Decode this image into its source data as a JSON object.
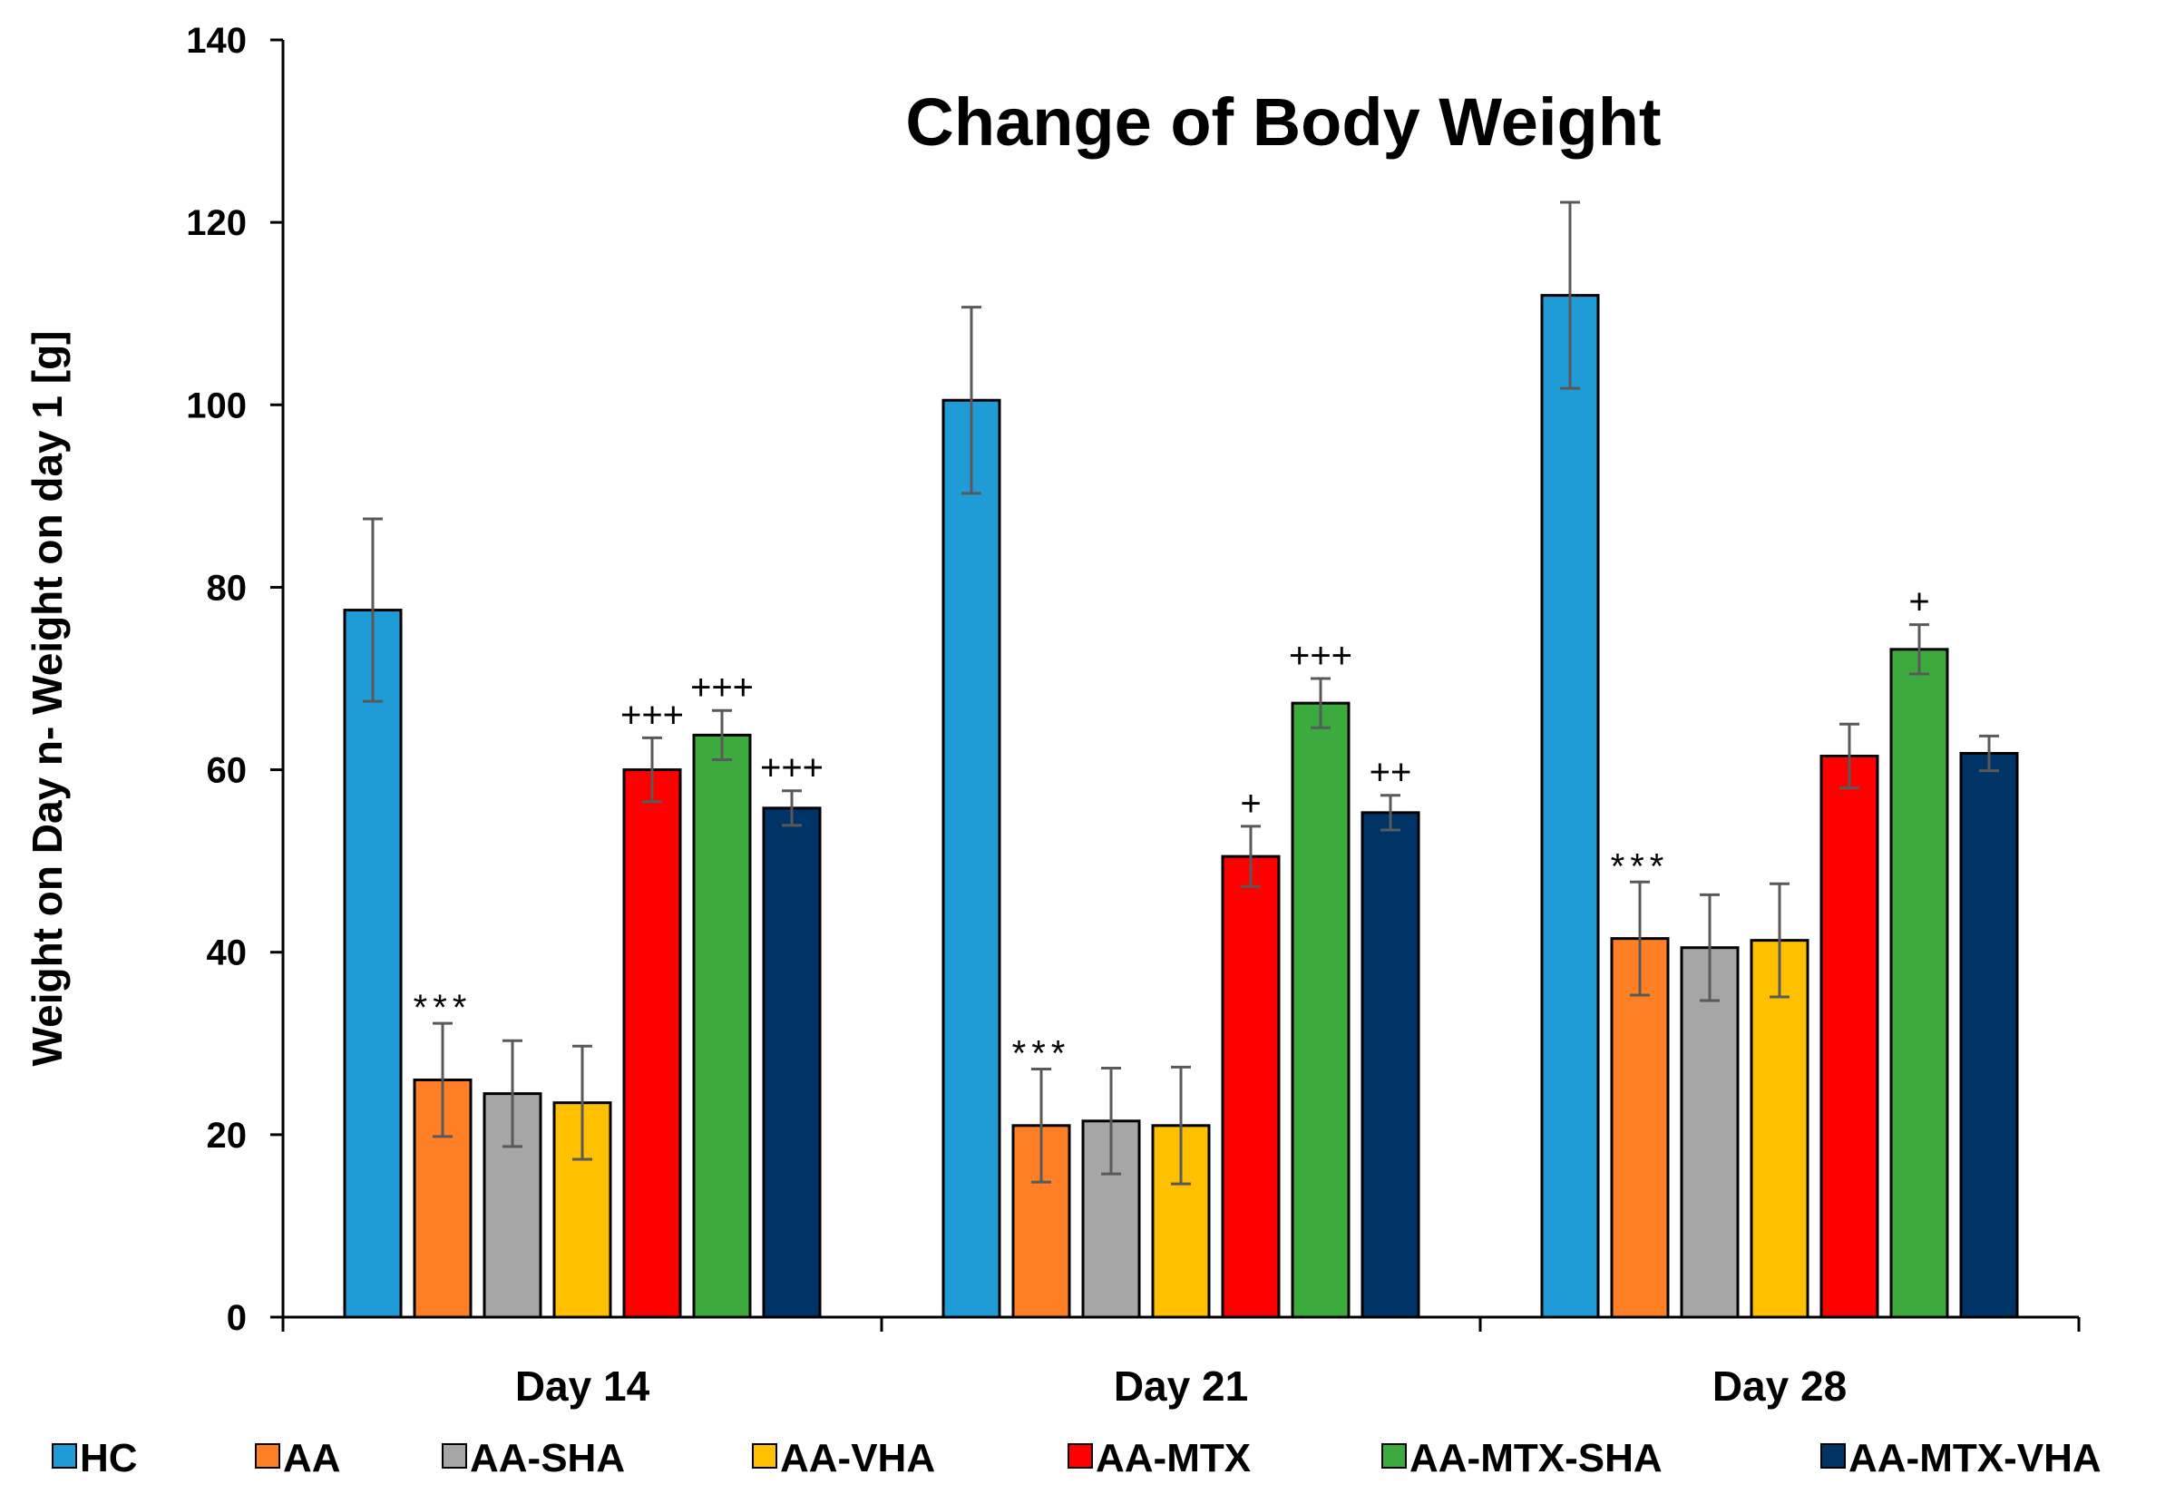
{
  "chart_data": {
    "type": "bar",
    "title": "Change of Body Weight",
    "xlabel": "",
    "ylabel": "Weight on Day n- Weight on day 1 [g]",
    "ylim": [
      0,
      140
    ],
    "yticks": [
      0,
      20,
      40,
      60,
      80,
      100,
      120,
      140
    ],
    "grid": false,
    "legend_position": "bottom",
    "categories": [
      "Day 14",
      "Day 21",
      "Day 28"
    ],
    "series": [
      {
        "name": "HC",
        "color": "#1F9BD7",
        "values": [
          77.5,
          100.5,
          112.0
        ],
        "errors": [
          10.0,
          10.2,
          10.2
        ],
        "annotations": [
          "",
          "",
          ""
        ]
      },
      {
        "name": "AA",
        "color": "#FF7F27",
        "values": [
          26.0,
          21.0,
          41.5
        ],
        "errors": [
          6.2,
          6.2,
          6.2
        ],
        "annotations": [
          "***",
          "***",
          "***"
        ]
      },
      {
        "name": "AA-SHA",
        "color": "#A6A6A6",
        "values": [
          24.5,
          21.5,
          40.5
        ],
        "errors": [
          5.8,
          5.8,
          5.8
        ],
        "annotations": [
          "",
          "",
          ""
        ]
      },
      {
        "name": "AA-VHA",
        "color": "#FFC000",
        "values": [
          23.5,
          21.0,
          41.3
        ],
        "errors": [
          6.2,
          6.4,
          6.2
        ],
        "annotations": [
          "",
          "",
          ""
        ]
      },
      {
        "name": "AA-MTX",
        "color": "#FF0000",
        "values": [
          60.0,
          50.5,
          61.5
        ],
        "errors": [
          3.5,
          3.3,
          3.5
        ],
        "annotations": [
          "+++",
          "+",
          ""
        ]
      },
      {
        "name": "AA-MTX-SHA",
        "color": "#3DAA3D",
        "values": [
          63.8,
          67.3,
          73.2
        ],
        "errors": [
          2.7,
          2.7,
          2.7
        ],
        "annotations": [
          "+++",
          "+++",
          "+"
        ]
      },
      {
        "name": "AA-MTX-VHA",
        "color": "#003366",
        "values": [
          55.8,
          55.3,
          61.8
        ],
        "errors": [
          1.9,
          1.9,
          1.9
        ],
        "annotations": [
          "+++",
          "++",
          ""
        ]
      }
    ]
  }
}
